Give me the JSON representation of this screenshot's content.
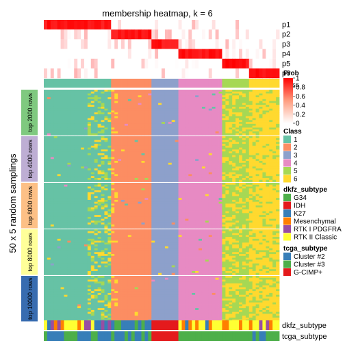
{
  "chart_data": {
    "type": "heatmap",
    "title": "membership heatmap, k = 6",
    "row_title": "50 x 5 random samplings",
    "prob_rows": [
      "p1",
      "p2",
      "p3",
      "p4",
      "p5",
      "p6"
    ],
    "class_row_label": "class",
    "groups": [
      "top 2000 rows",
      "top 4000 rows",
      "top 6000 rows",
      "top 8000 rows",
      "top 10000 rows"
    ],
    "group_colors": [
      "#7fc97f",
      "#beaed4",
      "#fdc086",
      "#ffff99",
      "#386cb0"
    ],
    "num_columns": 70,
    "class_spans": [
      {
        "class": "1",
        "start": 0,
        "end": 20
      },
      {
        "class": "2",
        "start": 20,
        "end": 32
      },
      {
        "class": "3",
        "start": 32,
        "end": 40
      },
      {
        "class": "4",
        "start": 40,
        "end": 53
      },
      {
        "class": "5",
        "start": 53,
        "end": 61
      },
      {
        "class": "6",
        "start": 61,
        "end": 70
      }
    ],
    "annotation_rows": [
      "dkfz_subtype",
      "tcga_subtype"
    ],
    "legends": {
      "prob": {
        "title": "Prob",
        "ticks": [
          "1",
          "0.8",
          "0.6",
          "0.4",
          "0.2",
          "0"
        ],
        "colors": [
          "#ffffff",
          "#ff0000"
        ]
      },
      "class": {
        "title": "Class",
        "items": [
          {
            "label": "1",
            "color": "#66c2a5"
          },
          {
            "label": "2",
            "color": "#fc8d62"
          },
          {
            "label": "3",
            "color": "#8da0cb"
          },
          {
            "label": "4",
            "color": "#e78ac3"
          },
          {
            "label": "5",
            "color": "#a6d854"
          },
          {
            "label": "6",
            "color": "#ffd92f"
          }
        ]
      },
      "dkfz_subtype": {
        "title": "dkfz_subtype",
        "items": [
          {
            "label": "G34",
            "color": "#4daf4a"
          },
          {
            "label": "IDH",
            "color": "#e41a1c"
          },
          {
            "label": "K27",
            "color": "#377eb8"
          },
          {
            "label": "Mesenchymal",
            "color": "#ff7f00"
          },
          {
            "label": "RTK I PDGFRA",
            "color": "#984ea3"
          },
          {
            "label": "RTK II Classic",
            "color": "#ffff33"
          }
        ]
      },
      "tcga_subtype": {
        "title": "tcga_subtype",
        "items": [
          {
            "label": "Cluster #2",
            "color": "#377eb8"
          },
          {
            "label": "Cluster #3",
            "color": "#4daf4a"
          },
          {
            "label": "G-CIMP+",
            "color": "#e41a1c"
          }
        ]
      }
    }
  }
}
